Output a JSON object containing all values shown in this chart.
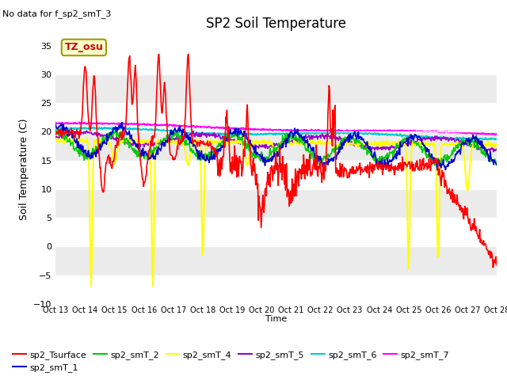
{
  "title": "SP2 Soil Temperature",
  "ylabel": "Soil Temperature (C)",
  "xlabel": "Time",
  "no_data_text": "No data for f_sp2_smT_3",
  "tz_label": "TZ_osu",
  "ylim": [
    -10,
    37
  ],
  "yticks": [
    -10,
    -5,
    0,
    5,
    10,
    15,
    20,
    25,
    30,
    35
  ],
  "x_tick_labels": [
    "Oct 13",
    "Oct 14",
    "Oct 15",
    "Oct 16",
    "Oct 17",
    "Oct 18",
    "Oct 19",
    "Oct 20",
    "Oct 21",
    "Oct 22",
    "Oct 23",
    "Oct 24",
    "Oct 25",
    "Oct 26",
    "Oct 27",
    "Oct 28"
  ],
  "bg_color": "#ffffff",
  "plot_bg_color": "#ffffff",
  "series_colors": {
    "sp2_Tsurface": "#ff0000",
    "sp2_smT_1": "#0000cc",
    "sp2_smT_2": "#00cc00",
    "sp2_smT_4": "#ffff00",
    "sp2_smT_5": "#9900cc",
    "sp2_smT_6": "#00cccc",
    "sp2_smT_7": "#ff00ff"
  },
  "legend_labels": [
    "sp2_Tsurface",
    "sp2_smT_1",
    "sp2_smT_2",
    "sp2_smT_4",
    "sp2_smT_5",
    "sp2_smT_6",
    "sp2_smT_7"
  ],
  "grid_color": "#dddddd",
  "figsize": [
    6.4,
    4.8
  ],
  "dpi": 100
}
